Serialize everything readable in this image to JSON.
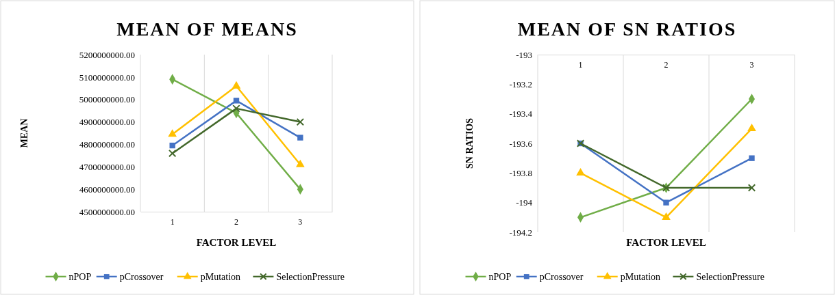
{
  "chart_data": [
    {
      "type": "line",
      "title": "MEAN OF MEANS",
      "xlabel": "FACTOR LEVEL",
      "ylabel": "MEAN",
      "categories": [
        "1",
        "2",
        "3"
      ],
      "ylim": [
        4500000000,
        5200000000
      ],
      "yticks": [
        {
          "value": 4500000000,
          "label": "4500000000.00"
        },
        {
          "value": 4600000000,
          "label": "4600000000.00"
        },
        {
          "value": 4700000000,
          "label": "4700000000.00"
        },
        {
          "value": 4800000000,
          "label": "4800000000.00"
        },
        {
          "value": 4900000000,
          "label": "4900000000.00"
        },
        {
          "value": 5000000000,
          "label": "5000000000.00"
        },
        {
          "value": 5100000000,
          "label": "5100000000.00"
        },
        {
          "value": 5200000000,
          "label": "5200000000.00"
        }
      ],
      "grid": "x",
      "legend": "bottom",
      "series": [
        {
          "name": "nPOP",
          "color": "#70ad47",
          "marker": "diamond",
          "values": [
            5090000000,
            4940000000,
            4600000000
          ]
        },
        {
          "name": "pCrossover",
          "color": "#4472c4",
          "marker": "square",
          "values": [
            4795000000,
            4995000000,
            4830000000
          ]
        },
        {
          "name": "pMutation",
          "color": "#ffc000",
          "marker": "triangle",
          "values": [
            4845000000,
            5060000000,
            4710000000
          ]
        },
        {
          "name": "SelectionPressure",
          "color": "#43682b",
          "marker": "cross",
          "values": [
            4760000000,
            4960000000,
            4900000000
          ]
        }
      ]
    },
    {
      "type": "line",
      "title": "MEAN OF SN RATIOS",
      "xlabel": "FACTOR LEVEL",
      "ylabel": "SN RATIOS",
      "categories": [
        "1",
        "2",
        "3"
      ],
      "ylim": [
        -194.2,
        -193
      ],
      "yticks": [
        -194.2,
        -194,
        -193.8,
        -193.6,
        -193.4,
        -193.2,
        -193
      ],
      "grid": "x",
      "legend": "bottom",
      "series": [
        {
          "name": "nPOP",
          "color": "#70ad47",
          "marker": "diamond",
          "values": [
            -194.1,
            -193.9,
            -193.3
          ]
        },
        {
          "name": "pCrossover",
          "color": "#4472c4",
          "marker": "square",
          "values": [
            -193.6,
            -194.0,
            -193.7
          ]
        },
        {
          "name": "pMutation",
          "color": "#ffc000",
          "marker": "triangle",
          "values": [
            -193.8,
            -194.1,
            -193.5
          ]
        },
        {
          "name": "SelectionPressure",
          "color": "#43682b",
          "marker": "cross",
          "values": [
            -193.6,
            -193.9,
            -193.9
          ]
        }
      ]
    }
  ]
}
